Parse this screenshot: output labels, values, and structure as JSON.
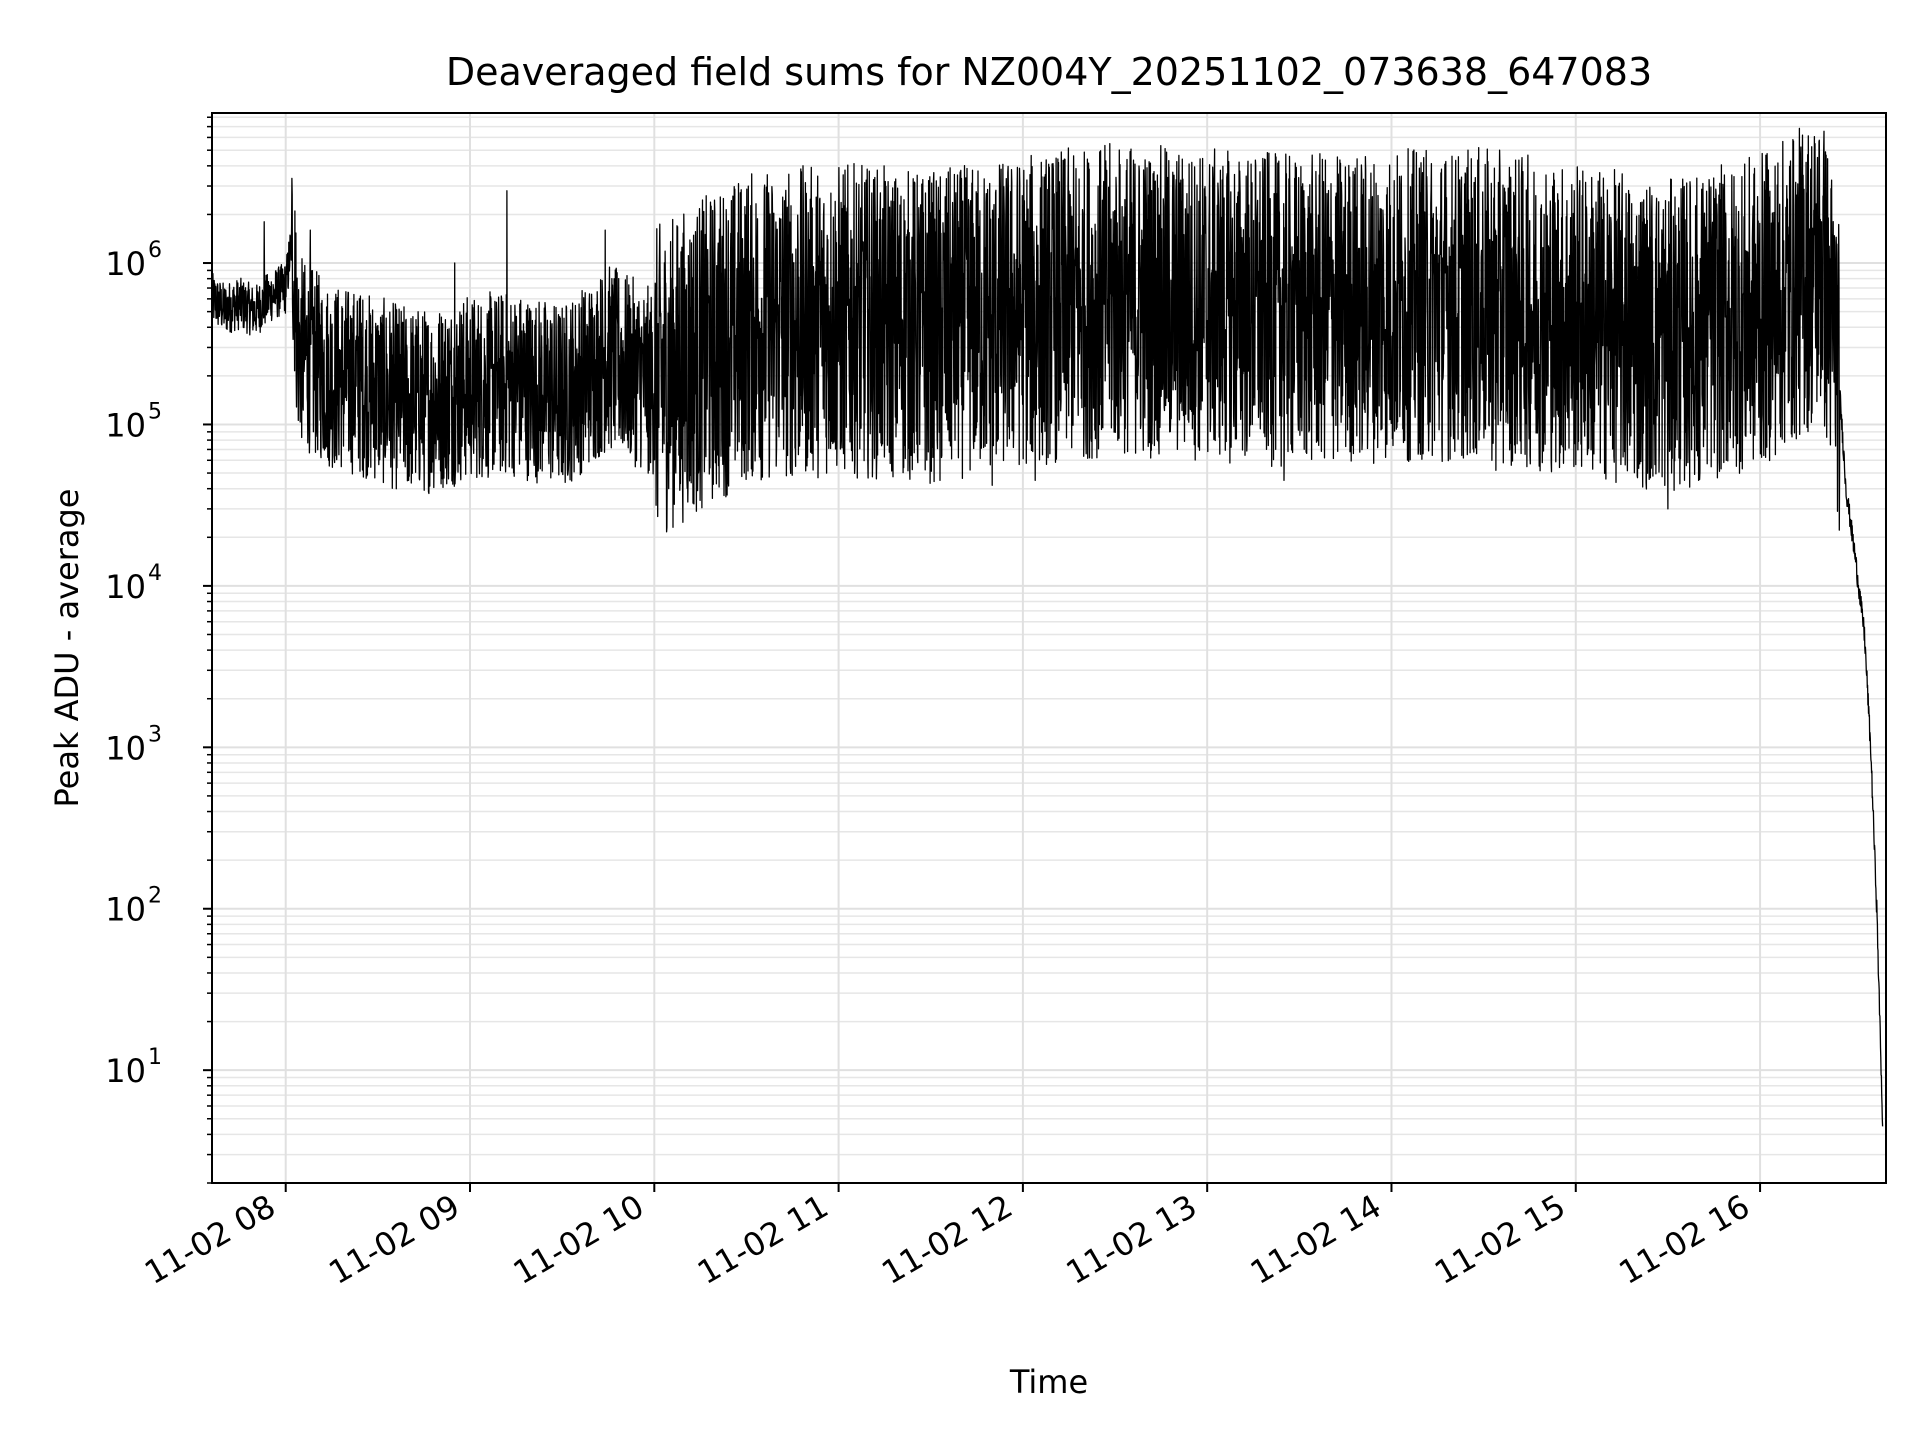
{
  "chart_data": {
    "type": "line",
    "title": "Deaveraged field sums for NZ004Y_20251102_073638_647083",
    "xlabel": "Time",
    "ylabel": "Peak ADU - average",
    "yscale": "log",
    "xlim": [
      "2025-11-02 07:36",
      "2025-11-02 16:41"
    ],
    "ylim": [
      2,
      8500000
    ],
    "grid": true,
    "legend": "none",
    "line_color": "#000000",
    "x_ticks": [
      {
        "time": "2025-11-02 08:00",
        "label": "11-02 08"
      },
      {
        "time": "2025-11-02 09:00",
        "label": "11-02 09"
      },
      {
        "time": "2025-11-02 10:00",
        "label": "11-02 10"
      },
      {
        "time": "2025-11-02 11:00",
        "label": "11-02 11"
      },
      {
        "time": "2025-11-02 12:00",
        "label": "11-02 12"
      },
      {
        "time": "2025-11-02 13:00",
        "label": "11-02 13"
      },
      {
        "time": "2025-11-02 14:00",
        "label": "11-02 14"
      },
      {
        "time": "2025-11-02 15:00",
        "label": "11-02 15"
      },
      {
        "time": "2025-11-02 16:00",
        "label": "11-02 16"
      }
    ],
    "y_ticks": [
      {
        "value": 10,
        "base": "10",
        "exp": "1"
      },
      {
        "value": 100,
        "base": "10",
        "exp": "2"
      },
      {
        "value": 1000,
        "base": "10",
        "exp": "3"
      },
      {
        "value": 10000,
        "base": "10",
        "exp": "4"
      },
      {
        "value": 100000,
        "base": "10",
        "exp": "5"
      },
      {
        "value": 1000000,
        "base": "10",
        "exp": "6"
      }
    ],
    "series": [
      {
        "points": [
          [
            "2025-11-02 07:36",
            600000
          ],
          [
            "2025-11-02 07:40",
            520000
          ],
          [
            "2025-11-02 07:45",
            560000
          ],
          [
            "2025-11-02 07:50",
            500000
          ],
          [
            "2025-11-02 07:55",
            620000
          ],
          [
            "2025-11-02 08:00",
            700000
          ],
          [
            "2025-11-02 08:02",
            1400000
          ],
          [
            "2025-11-02 08:04",
            300000
          ],
          [
            "2025-11-02 08:08",
            250000
          ],
          [
            "2025-11-02 08:15",
            200000
          ],
          [
            "2025-11-02 08:25",
            180000
          ],
          [
            "2025-11-02 08:35",
            150000
          ],
          [
            "2025-11-02 08:45",
            140000
          ],
          [
            "2025-11-02 09:00",
            170000
          ],
          [
            "2025-11-02 09:15",
            180000
          ],
          [
            "2025-11-02 09:30",
            150000
          ],
          [
            "2025-11-02 09:45",
            260000
          ],
          [
            "2025-11-02 10:00",
            180000
          ],
          [
            "2025-11-02 10:30",
            400000
          ],
          [
            "2025-11-02 11:00",
            450000
          ],
          [
            "2025-11-02 11:30",
            400000
          ],
          [
            "2025-11-02 12:00",
            500000
          ],
          [
            "2025-11-02 12:30",
            600000
          ],
          [
            "2025-11-02 13:00",
            550000
          ],
          [
            "2025-11-02 13:30",
            500000
          ],
          [
            "2025-11-02 14:00",
            550000
          ],
          [
            "2025-11-02 14:30",
            550000
          ],
          [
            "2025-11-02 15:00",
            450000
          ],
          [
            "2025-11-02 15:30",
            350000
          ],
          [
            "2025-11-02 16:00",
            500000
          ],
          [
            "2025-11-02 16:15",
            800000
          ],
          [
            "2025-11-02 16:20",
            1000000
          ],
          [
            "2025-11-02 16:25",
            300000
          ],
          [
            "2025-11-02 16:28",
            40000
          ],
          [
            "2025-11-02 16:31",
            15000
          ],
          [
            "2025-11-02 16:34",
            5000
          ],
          [
            "2025-11-02 16:36",
            1000
          ],
          [
            "2025-11-02 16:38",
            100
          ],
          [
            "2025-11-02 16:40",
            4
          ]
        ],
        "spikes": [
          [
            "2025-11-02 07:53",
            1800000
          ],
          [
            "2025-11-02 08:03",
            2100000
          ],
          [
            "2025-11-02 08:08",
            1600000
          ],
          [
            "2025-11-02 08:14",
            60000
          ],
          [
            "2025-11-02 08:24",
            600000
          ],
          [
            "2025-11-02 08:40",
            45000
          ],
          [
            "2025-11-02 08:55",
            1000000
          ],
          [
            "2025-11-02 09:12",
            2800000
          ],
          [
            "2025-11-02 09:44",
            1600000
          ],
          [
            "2025-11-02 09:58",
            50000
          ],
          [
            "2025-11-02 10:46",
            55000
          ],
          [
            "2025-11-02 11:33",
            45000
          ],
          [
            "2025-11-02 11:50",
            42000
          ],
          [
            "2025-11-02 12:04",
            45000
          ],
          [
            "2025-11-02 13:25",
            45000
          ],
          [
            "2025-11-02 14:34",
            52000
          ],
          [
            "2025-11-02 15:20",
            48000
          ],
          [
            "2025-11-02 15:30",
            30000
          ],
          [
            "2025-11-02 15:40",
            45000
          ],
          [
            "2025-11-02 15:48",
            2500000
          ],
          [
            "2025-11-02 16:12",
            2400000
          ],
          [
            "2025-11-02 16:15",
            4200000
          ]
        ]
      }
    ]
  }
}
